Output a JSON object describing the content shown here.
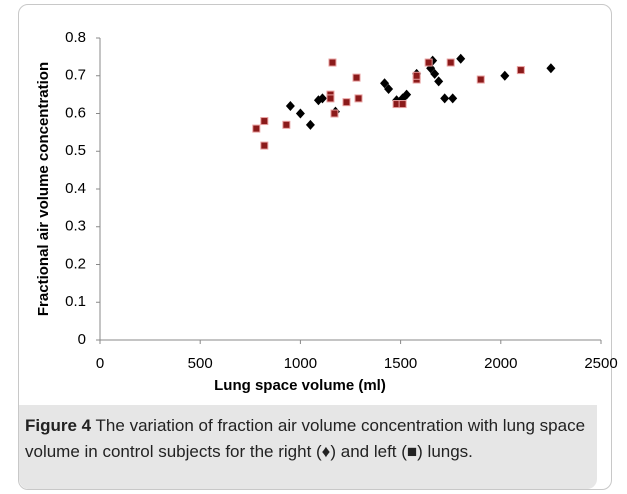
{
  "chart_data": {
    "type": "scatter",
    "xlabel": "Lung space volume (ml)",
    "ylabel": "Fractional air volume concentration",
    "xlim": [
      0,
      2500
    ],
    "xticks": [
      0,
      500,
      1000,
      1500,
      2000,
      2500
    ],
    "ylim": [
      0,
      0.8
    ],
    "yticks": [
      0,
      0.1,
      0.2,
      0.3,
      0.4,
      0.5,
      0.6,
      0.7,
      0.8
    ],
    "series": [
      {
        "marker": "diamond",
        "color": "#000000",
        "x": [
          950,
          1000,
          1050,
          1090,
          1110,
          1175,
          1420,
          1440,
          1480,
          1510,
          1530,
          1580,
          1650,
          1660,
          1670,
          1690,
          1720,
          1760,
          1800,
          2020,
          2250
        ],
        "values": [
          0.62,
          0.6,
          0.57,
          0.635,
          0.64,
          0.605,
          0.68,
          0.665,
          0.635,
          0.64,
          0.65,
          0.705,
          0.72,
          0.74,
          0.705,
          0.685,
          0.64,
          0.64,
          0.745,
          0.7,
          0.72
        ]
      },
      {
        "marker": "square",
        "color": "#8b1a1a",
        "x": [
          780,
          820,
          820,
          930,
          1150,
          1150,
          1160,
          1170,
          1230,
          1280,
          1290,
          1480,
          1510,
          1580,
          1580,
          1640,
          1750,
          1900,
          2100
        ],
        "values": [
          0.56,
          0.58,
          0.515,
          0.57,
          0.65,
          0.64,
          0.735,
          0.6,
          0.63,
          0.695,
          0.64,
          0.625,
          0.625,
          0.69,
          0.7,
          0.735,
          0.735,
          0.69,
          0.715
        ]
      }
    ]
  },
  "caption": {
    "label": "Figure 4",
    "text": "The variation of fraction air volume concentration with lung space volume in control subjects for the right (♦) and left (■) lungs."
  }
}
